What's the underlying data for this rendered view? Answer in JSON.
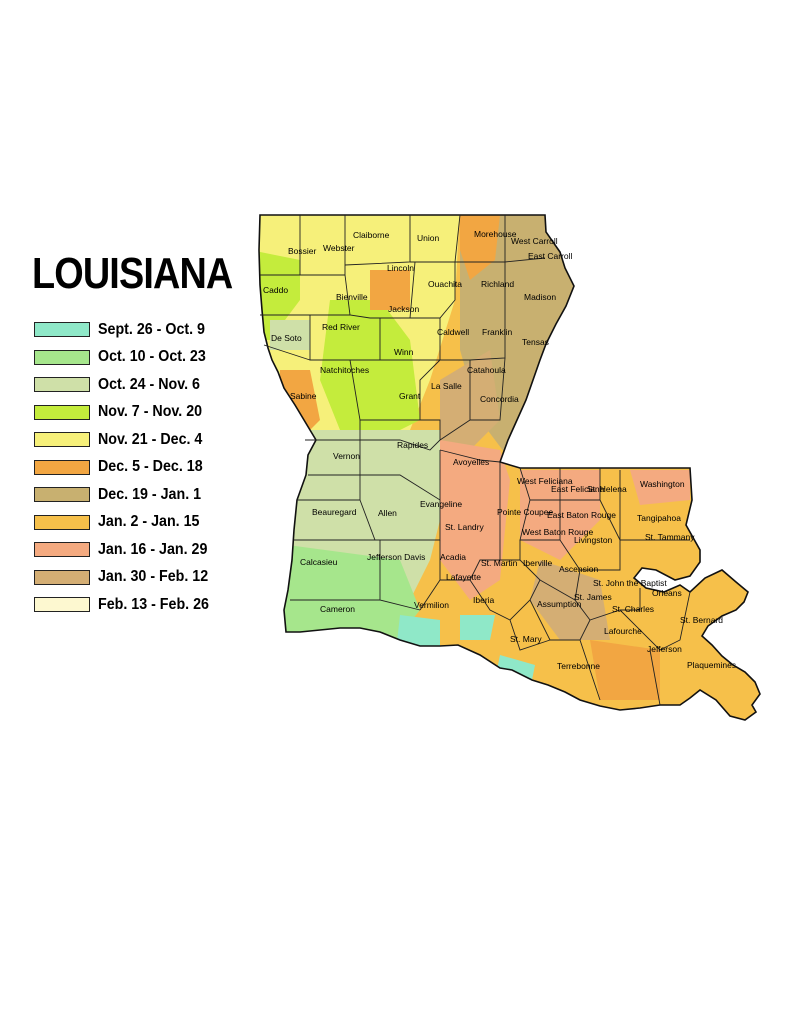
{
  "title": "LOUISIANA",
  "legend": [
    {
      "label": "Sept. 26 - Oct. 9",
      "color": "#8fe8c8"
    },
    {
      "label": "Oct. 10 - Oct. 23",
      "color": "#a6e68c"
    },
    {
      "label": "Oct. 24 - Nov. 6",
      "color": "#cfe0a8"
    },
    {
      "label": "Nov. 7 - Nov. 20",
      "color": "#c4ec3c"
    },
    {
      "label": "Nov. 21 - Dec. 4",
      "color": "#f6f07a"
    },
    {
      "label": "Dec. 5 - Dec. 18",
      "color": "#f2a642"
    },
    {
      "label": "Dec. 19 - Jan. 1",
      "color": "#c8b070"
    },
    {
      "label": "Jan. 2 - Jan. 15",
      "color": "#f6c04a"
    },
    {
      "label": "Jan. 16 - Jan. 29",
      "color": "#f4aa80"
    },
    {
      "label": "Jan. 30 - Feb. 12",
      "color": "#d4ae74"
    },
    {
      "label": "Feb. 13 - Feb. 26",
      "color": "#fdf8d0"
    }
  ],
  "parishes": [
    "Claiborne",
    "Union",
    "Morehouse",
    "West Carroll",
    "East Carroll",
    "Bossier",
    "Webster",
    "Lincoln",
    "Ouachita",
    "Richland",
    "Madison",
    "Caddo",
    "Bienville",
    "Jackson",
    "Red River",
    "De Soto",
    "Caldwell",
    "Franklin",
    "Tensas",
    "Winn",
    "Natchitoches",
    "Catahoula",
    "La Salle",
    "Sabine",
    "Grant",
    "Concordia",
    "Rapides",
    "Vernon",
    "Avoyelles",
    "West Feliciana",
    "East Feliciana",
    "St. Helena",
    "Washington",
    "Beauregard",
    "Allen",
    "Evangeline",
    "St. Landry",
    "Pointe Coupee",
    "East Baton Rouge",
    "West Baton Rouge",
    "Livingston",
    "Tangipahoa",
    "St. Tammany",
    "Calcasieu",
    "Jefferson Davis",
    "Acadia",
    "St. Martin",
    "Lafayette",
    "Iberville",
    "Ascension",
    "St. John the Baptist",
    "St. James",
    "Cameron",
    "Vermilion",
    "Iberia",
    "Assumption",
    "St. Charles",
    "Orleans",
    "St. Bernard",
    "St. Mary",
    "Lafourche",
    "Jefferson",
    "Terrebonne",
    "Plaquemines"
  ]
}
